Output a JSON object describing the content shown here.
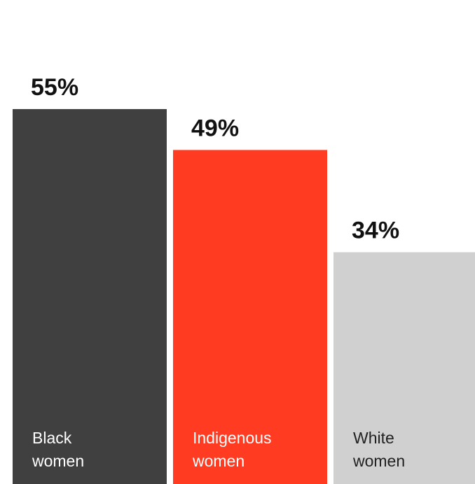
{
  "chart_data": {
    "type": "bar",
    "categories": [
      {
        "lines": [
          "Black",
          "women"
        ]
      },
      {
        "lines": [
          "Indigenous",
          "women"
        ]
      },
      {
        "lines": [
          "White",
          "women"
        ]
      }
    ],
    "values": [
      55,
      49,
      34
    ],
    "value_labels": [
      "55%",
      "49%",
      "34%"
    ],
    "colors": [
      "#404040",
      "#ff3c22",
      "#d0d0d0"
    ],
    "label_colors": [
      "#ffffff",
      "#ffffff",
      "#222222"
    ],
    "title": "",
    "xlabel": "",
    "ylabel": "",
    "ylim": [
      0,
      71
    ],
    "grid": false,
    "legend": "none"
  }
}
